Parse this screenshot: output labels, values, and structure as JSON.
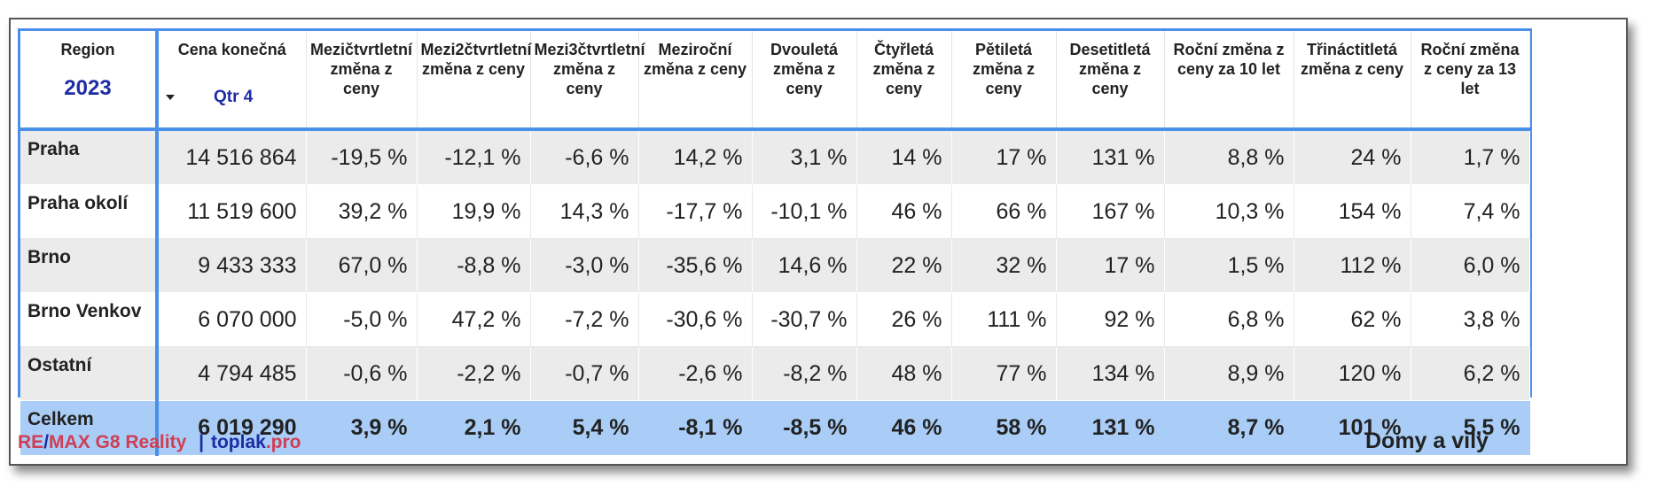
{
  "header": {
    "region": "Region",
    "year": "2023",
    "price": "Cena konečná",
    "qtr": "Qtr 4",
    "columns": [
      "Mezičtvrtletní změna z ceny",
      "Mezi2čtvrtletní změna z ceny",
      "Mezi3čtvrtletní změna z ceny",
      "Meziroční změna z ceny",
      "Dvouletá změna z ceny",
      "Čtyřletá změna z ceny",
      "Pětiletá změna z ceny",
      "Desetitletá změna z ceny",
      "Roční změna z ceny za 10 let",
      "Třináctitletá změna z ceny",
      "Roční změna z ceny za 13 let"
    ]
  },
  "rows": [
    {
      "region": "Praha",
      "price": "14 516 864",
      "values": [
        "-19,5 %",
        "-12,1 %",
        "-6,6 %",
        "14,2 %",
        "3,1 %",
        "14 %",
        "17 %",
        "131 %",
        "8,8 %",
        "24 %",
        "1,7 %"
      ]
    },
    {
      "region": "Praha okolí",
      "price": "11 519 600",
      "values": [
        "39,2 %",
        "19,9 %",
        "14,3 %",
        "-17,7 %",
        "-10,1 %",
        "46 %",
        "66 %",
        "167 %",
        "10,3 %",
        "154 %",
        "7,4 %"
      ]
    },
    {
      "region": "Brno",
      "price": "9 433 333",
      "values": [
        "67,0 %",
        "-8,8 %",
        "-3,0 %",
        "-35,6 %",
        "14,6 %",
        "22 %",
        "32 %",
        "17 %",
        "1,5 %",
        "112 %",
        "6,0 %"
      ]
    },
    {
      "region": "Brno Venkov",
      "price": "6 070 000",
      "values": [
        "-5,0 %",
        "47,2 %",
        "-7,2 %",
        "-30,6 %",
        "-30,7 %",
        "26 %",
        "111 %",
        "92 %",
        "6,8 %",
        "62 %",
        "3,8 %"
      ]
    },
    {
      "region": "Ostatní",
      "price": "4 794 485",
      "values": [
        "-0,6 %",
        "-2,2 %",
        "-0,7 %",
        "-2,6 %",
        "-8,2 %",
        "48 %",
        "77 %",
        "134 %",
        "8,9 %",
        "120 %",
        "6,2 %"
      ]
    },
    {
      "region": "Celkem",
      "price": "6 019 290",
      "values": [
        "3,9 %",
        "2,1 %",
        "5,4 %",
        "-8,1 %",
        "-8,5 %",
        "46 %",
        "58 %",
        "131 %",
        "8,7 %",
        "101 %",
        "5,5 %"
      ]
    }
  ],
  "footer": {
    "brand_part1": "RE",
    "slash": "/",
    "brand_part2": "MAX G8 Reality",
    "separator": "|",
    "site_name": "toplak",
    "site_tld": ".pro",
    "right_label": "Domy a vily"
  },
  "chart_data": {
    "type": "table",
    "columns": [
      "Region",
      "Cena konečná",
      "Mezičtvrtletní změna z ceny",
      "Mezi2čtvrtletní změna z ceny",
      "Mezi3čtvrtletní změna z ceny",
      "Meziroční změna z ceny",
      "Dvouletá změna z ceny",
      "Čtyřletá změna z ceny",
      "Pětiletá změna z ceny",
      "Desetitletá změna z ceny",
      "Roční změna z ceny za 10 let",
      "Třináctitletá změna z ceny",
      "Roční změna z ceny za 13 let"
    ],
    "rows": [
      [
        "Praha",
        14516864,
        -19.5,
        -12.1,
        -6.6,
        14.2,
        3.1,
        14,
        17,
        131,
        8.8,
        24,
        1.7
      ],
      [
        "Praha okolí",
        11519600,
        39.2,
        19.9,
        14.3,
        -17.7,
        -10.1,
        46,
        66,
        167,
        10.3,
        154,
        7.4
      ],
      [
        "Brno",
        9433333,
        67.0,
        -8.8,
        -3.0,
        -35.6,
        14.6,
        22,
        32,
        17,
        1.5,
        112,
        6.0
      ],
      [
        "Brno Venkov",
        6070000,
        -5.0,
        47.2,
        -7.2,
        -30.6,
        -30.7,
        26,
        111,
        92,
        6.8,
        62,
        3.8
      ],
      [
        "Ostatní",
        4794485,
        -0.6,
        -2.2,
        -0.7,
        -2.6,
        -8.2,
        48,
        77,
        134,
        8.9,
        120,
        6.2
      ],
      [
        "Celkem",
        6019290,
        3.9,
        2.1,
        5.4,
        -8.1,
        -8.5,
        46,
        58,
        131,
        8.7,
        101,
        5.5
      ]
    ],
    "filters": {
      "year": "2023",
      "quarter": "Qtr 4"
    },
    "accent_color": "#4a8fe8",
    "total_row_color": "#a9cdf6"
  }
}
